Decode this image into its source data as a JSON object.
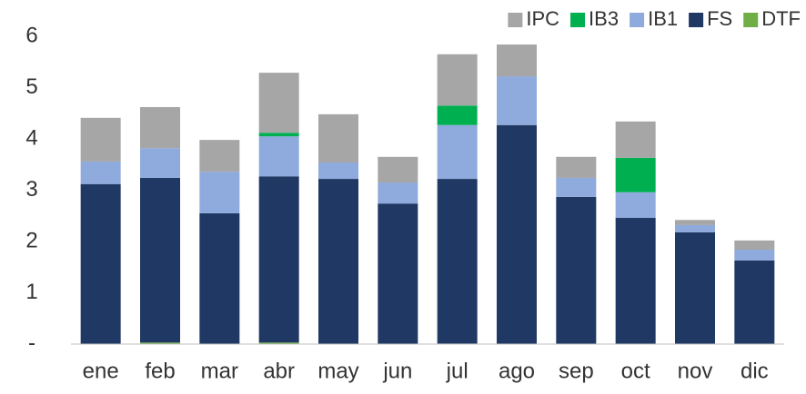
{
  "chart_data": {
    "type": "stacked_bar",
    "categories": [
      "ene",
      "feb",
      "mar",
      "abr",
      "may",
      "jun",
      "jul",
      "ago",
      "sep",
      "oct",
      "nov",
      "dic"
    ],
    "series": [
      {
        "name": "DTF",
        "color": "#70ad47",
        "values": [
          0,
          0.03,
          0,
          0.03,
          0,
          0,
          0.01,
          0,
          0,
          0,
          0,
          0
        ]
      },
      {
        "name": "FS",
        "color": "#203864",
        "values": [
          3.12,
          3.21,
          2.55,
          3.24,
          3.22,
          2.74,
          3.21,
          4.27,
          2.87,
          2.46,
          2.18,
          1.63
        ]
      },
      {
        "name": "IB1",
        "color": "#8faadc",
        "values": [
          0.44,
          0.58,
          0.81,
          0.78,
          0.32,
          0.41,
          1.05,
          0.95,
          0.37,
          0.5,
          0.14,
          0.21
        ]
      },
      {
        "name": "IB3",
        "color": "#00b050",
        "values": [
          0,
          0,
          0,
          0.07,
          0,
          0,
          0.38,
          0,
          0,
          0.67,
          0,
          0
        ]
      },
      {
        "name": "IPC",
        "color": "#a6a6a6",
        "values": [
          0.85,
          0.8,
          0.62,
          1.17,
          0.94,
          0.5,
          1.0,
          0.62,
          0.41,
          0.71,
          0.1,
          0.18
        ]
      }
    ],
    "ylim": [
      0,
      6
    ],
    "yticks": [
      {
        "value": 0,
        "label": "-"
      },
      1,
      2,
      3,
      4,
      5,
      6
    ],
    "legend": "top-right"
  }
}
